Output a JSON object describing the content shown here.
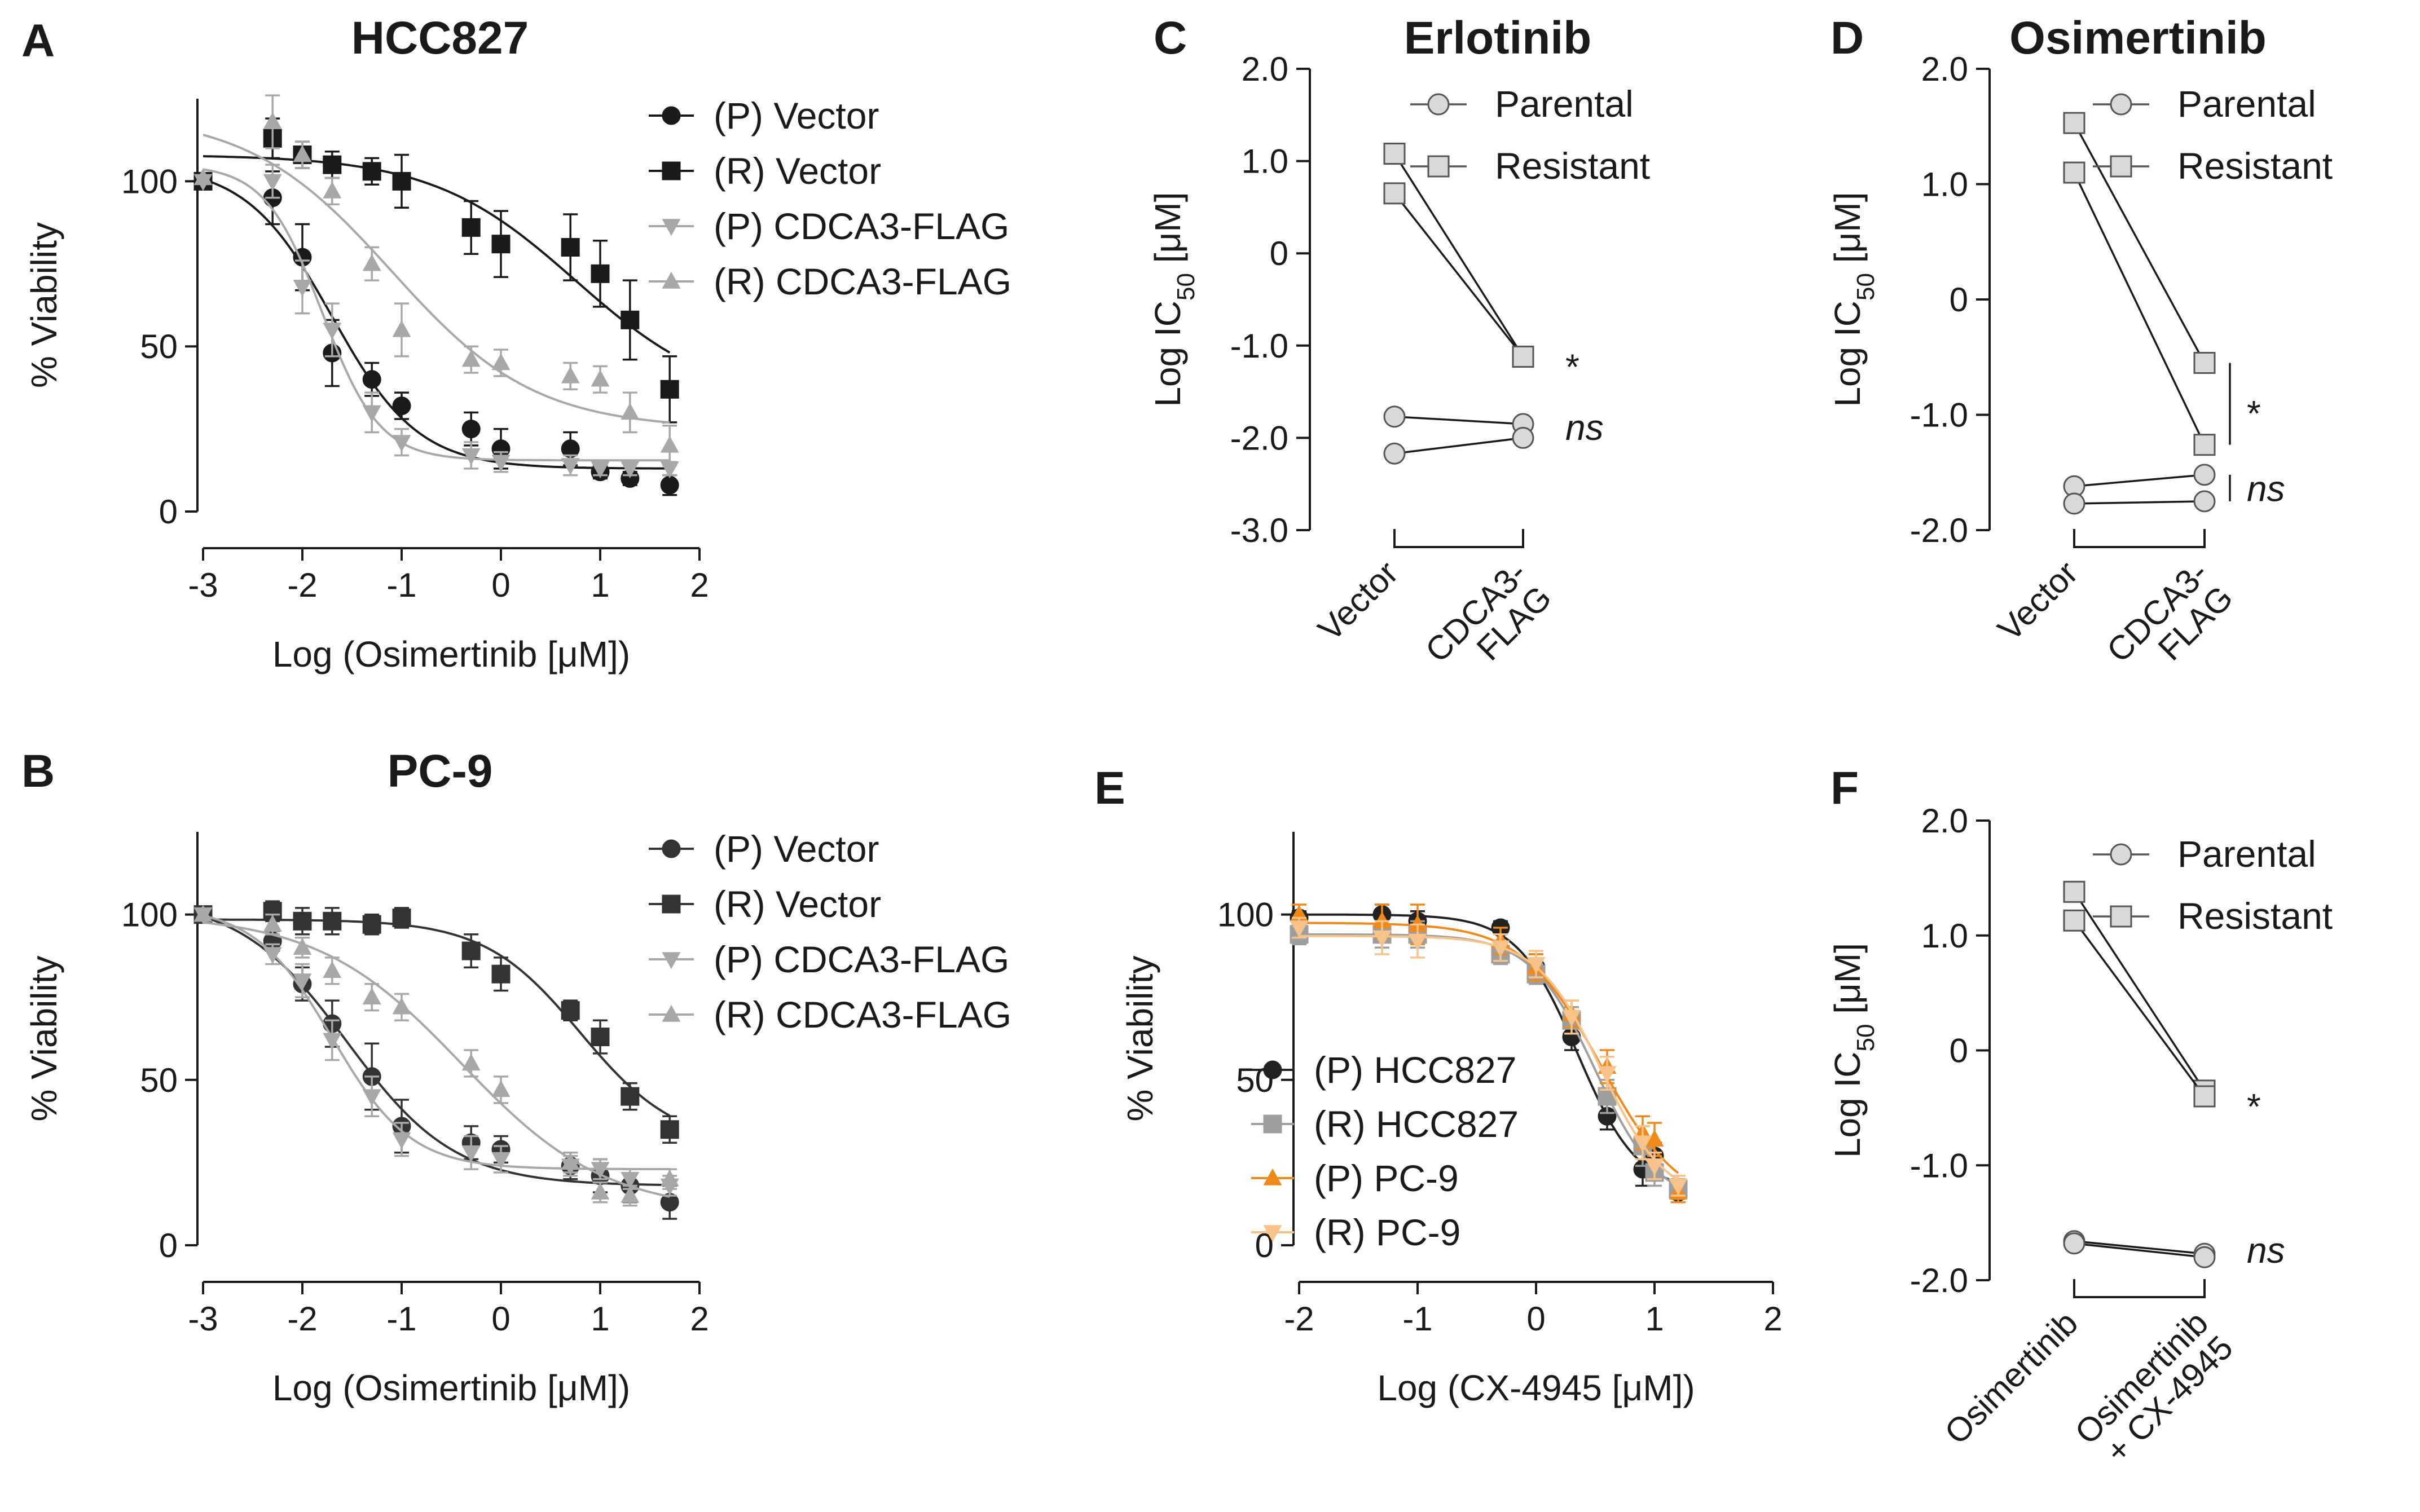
{
  "panel_labels": {
    "A": "A",
    "B": "B",
    "C": "C",
    "D": "D",
    "E": "E",
    "F": "F"
  },
  "chart_data": [
    {
      "id": "A",
      "type": "line",
      "title": "HCC827",
      "xlabel": "Log (Osimertinib [μM])",
      "ylabel": "% Viability",
      "xlim": [
        -3,
        2
      ],
      "ylim": [
        0,
        125
      ],
      "xticks": [
        -3,
        -2,
        -1,
        0,
        1,
        2
      ],
      "yticks": [
        0,
        50,
        100
      ],
      "series": [
        {
          "name": "(P) Vector",
          "marker": "circle",
          "color": "#1a1a1a",
          "x": [
            -3,
            -2.3,
            -2,
            -1.7,
            -1.3,
            -1,
            -0.3,
            0,
            0.7,
            1,
            1.3,
            1.7
          ],
          "y": [
            100,
            95,
            77,
            48,
            40,
            32,
            25,
            19,
            19,
            12,
            10,
            8
          ],
          "err": [
            0,
            8,
            10,
            10,
            5,
            4,
            5,
            6,
            5,
            2,
            2,
            3
          ]
        },
        {
          "name": "(R) Vector",
          "marker": "square",
          "color": "#1a1a1a",
          "x": [
            -3,
            -2.3,
            -2,
            -1.7,
            -1.3,
            -1,
            -0.3,
            0,
            0.7,
            1,
            1.3,
            1.7
          ],
          "y": [
            100,
            113,
            108,
            105,
            103,
            100,
            86,
            81,
            80,
            72,
            58,
            37
          ],
          "err": [
            0,
            6,
            4,
            4,
            4,
            8,
            8,
            10,
            10,
            10,
            12,
            10
          ]
        },
        {
          "name": "(P) CDCA3-FLAG",
          "marker": "tri-down",
          "color": "#a8a8a8",
          "x": [
            -3,
            -2.3,
            -2,
            -1.7,
            -1.3,
            -1,
            -0.3,
            0,
            0.7,
            1,
            1.3,
            1.7
          ],
          "y": [
            100,
            100,
            68,
            55,
            30,
            21,
            17,
            15,
            14,
            13,
            13,
            13
          ],
          "err": [
            0,
            5,
            8,
            8,
            6,
            4,
            4,
            3,
            3,
            2,
            2,
            2
          ]
        },
        {
          "name": "(R) CDCA3-FLAG",
          "marker": "tri-up",
          "color": "#a8a8a8",
          "x": [
            -3,
            -2.3,
            -2,
            -1.7,
            -1.3,
            -1,
            -0.3,
            0,
            0.7,
            1,
            1.3,
            1.7
          ],
          "y": [
            101,
            118,
            108,
            97,
            75,
            55,
            46,
            45,
            41,
            40,
            30,
            20
          ],
          "err": [
            0,
            8,
            4,
            4,
            5,
            8,
            4,
            4,
            4,
            4,
            6,
            6
          ]
        }
      ]
    },
    {
      "id": "B",
      "type": "line",
      "title": "PC-9",
      "xlabel": "Log (Osimertinib [μM])",
      "ylabel": "% Viability",
      "xlim": [
        -3,
        2
      ],
      "ylim": [
        0,
        125
      ],
      "xticks": [
        -3,
        -2,
        -1,
        0,
        1,
        2
      ],
      "yticks": [
        0,
        50,
        100
      ],
      "series": [
        {
          "name": "(P) Vector",
          "marker": "circle",
          "color": "#333333",
          "x": [
            -3,
            -2.3,
            -2,
            -1.7,
            -1.3,
            -1,
            -0.3,
            0,
            0.7,
            1,
            1.3,
            1.7
          ],
          "y": [
            100,
            92,
            79,
            67,
            51,
            36,
            31,
            29,
            24,
            21,
            18,
            13
          ],
          "err": [
            0,
            3,
            5,
            7,
            10,
            8,
            5,
            4,
            4,
            5,
            5,
            5
          ]
        },
        {
          "name": "(R) Vector",
          "marker": "square",
          "color": "#333333",
          "x": [
            -3,
            -2.3,
            -2,
            -1.7,
            -1.3,
            -1,
            -0.3,
            0,
            0.7,
            1,
            1.3,
            1.7
          ],
          "y": [
            100,
            101,
            98,
            98,
            97,
            99,
            89,
            82,
            71,
            63,
            45,
            35
          ],
          "err": [
            0,
            3,
            4,
            4,
            3,
            3,
            5,
            5,
            3,
            5,
            4,
            4
          ]
        },
        {
          "name": "(P) CDCA3-FLAG",
          "marker": "tri-down",
          "color": "#a8a8a8",
          "x": [
            -3,
            -2.3,
            -2,
            -1.7,
            -1.3,
            -1,
            -0.3,
            0,
            0.7,
            1,
            1.3,
            1.7
          ],
          "y": [
            100,
            88,
            80,
            62,
            45,
            32,
            28,
            26,
            24,
            23,
            20,
            18
          ],
          "err": [
            0,
            3,
            5,
            6,
            6,
            5,
            5,
            4,
            3,
            3,
            3,
            3
          ]
        },
        {
          "name": "(R) CDCA3-FLAG",
          "marker": "tri-up",
          "color": "#a8a8a8",
          "x": [
            -3,
            -2.3,
            -2,
            -1.7,
            -1.3,
            -1,
            -0.3,
            0,
            0.7,
            1,
            1.3,
            1.7
          ],
          "y": [
            100,
            97,
            90,
            83,
            75,
            72,
            55,
            47,
            25,
            16,
            15,
            20
          ],
          "err": [
            0,
            3,
            3,
            4,
            4,
            4,
            4,
            4,
            3,
            3,
            3,
            3
          ]
        }
      ]
    },
    {
      "id": "C",
      "type": "scatter",
      "title": "Erlotinib",
      "xlabel": "",
      "ylabel_main": "Log IC",
      "ylabel_sub": "50",
      "ylabel_unit": " [μM]",
      "ylim": [
        -3.0,
        2.0
      ],
      "yticks": [
        -3.0,
        -2.0,
        -1.0,
        0,
        1.0,
        2.0
      ],
      "ytick_labels": [
        "-3.0",
        "-2.0",
        "-1.0",
        "0",
        "1.0",
        "2.0"
      ],
      "categories": [
        "Vector",
        "CDCA3-\nFLAG"
      ],
      "legend": [
        "Parental",
        "Resistant"
      ],
      "pairs": [
        {
          "group": "Resistant",
          "values": [
            1.08,
            -1.12
          ]
        },
        {
          "group": "Resistant",
          "values": [
            0.65,
            -1.12
          ]
        },
        {
          "group": "Parental",
          "values": [
            -1.77,
            -1.85
          ]
        },
        {
          "group": "Parental",
          "values": [
            -2.17,
            -2.0
          ]
        }
      ],
      "significance": [
        {
          "label": "*",
          "italic": false,
          "y": -1.12
        },
        {
          "label": "ns",
          "italic": true,
          "y": -1.9
        }
      ]
    },
    {
      "id": "D",
      "type": "scatter",
      "title": "Osimertinib",
      "xlabel": "",
      "ylabel_main": "Log IC",
      "ylabel_sub": "50",
      "ylabel_unit": " [μM]",
      "ylim": [
        -2.0,
        2.0
      ],
      "yticks": [
        -2.0,
        -1.0,
        0,
        1.0,
        2.0
      ],
      "ytick_labels": [
        "-2.0",
        "-1.0",
        "0",
        "1.0",
        "2.0"
      ],
      "categories": [
        "Vector",
        "CDCA3-\nFLAG"
      ],
      "legend": [
        "Parental",
        "Resistant"
      ],
      "pairs": [
        {
          "group": "Resistant",
          "values": [
            1.53,
            -0.55
          ]
        },
        {
          "group": "Resistant",
          "values": [
            1.1,
            -1.26
          ]
        },
        {
          "group": "Parental",
          "values": [
            -1.62,
            -1.52
          ]
        },
        {
          "group": "Parental",
          "values": [
            -1.77,
            -1.75
          ]
        }
      ],
      "significance": [
        {
          "label": "*",
          "italic": false,
          "y": -0.9
        },
        {
          "label": "ns",
          "italic": true,
          "y": -1.65
        }
      ]
    },
    {
      "id": "E",
      "type": "line",
      "title": "",
      "xlabel": "Log (CX-4945 [μM])",
      "ylabel": "% Viability",
      "xlim": [
        -2,
        2
      ],
      "ylim": [
        0,
        125
      ],
      "xticks": [
        -2,
        -1,
        0,
        1,
        2
      ],
      "yticks": [
        0,
        50,
        100
      ],
      "legend_position": "lower-left",
      "series": [
        {
          "name": "(P) HCC827",
          "marker": "circle",
          "color": "#222222",
          "x": [
            -2,
            -1.3,
            -1,
            -0.3,
            0,
            0.3,
            0.6,
            0.9,
            1,
            1.2
          ],
          "y": [
            99,
            100,
            98,
            96,
            84,
            63,
            39,
            23,
            27,
            16
          ],
          "err": [
            2,
            3,
            3,
            2,
            4,
            4,
            4,
            5,
            4,
            3
          ]
        },
        {
          "name": "(R) HCC827",
          "marker": "square",
          "color": "#9e9e9e",
          "x": [
            -2,
            -1.3,
            -1,
            -0.3,
            0,
            0.3,
            0.6,
            0.9,
            1,
            1.2
          ],
          "y": [
            94,
            94,
            94,
            88,
            82,
            68,
            45,
            30,
            22,
            17
          ],
          "err": [
            3,
            4,
            4,
            3,
            3,
            4,
            5,
            6,
            4,
            3
          ]
        },
        {
          "name": "(P) PC-9",
          "marker": "tri-up",
          "color": "#ef8a1a",
          "x": [
            -2,
            -1.3,
            -1,
            -0.3,
            0,
            0.3,
            0.6,
            0.9,
            1,
            1.2
          ],
          "y": [
            100,
            98,
            97,
            92,
            84,
            70,
            54,
            34,
            32,
            16
          ],
          "err": [
            3,
            5,
            6,
            4,
            4,
            4,
            5,
            5,
            5,
            3
          ]
        },
        {
          "name": "(R) PC-9",
          "marker": "tri-down",
          "color": "#f7c38a",
          "x": [
            -2,
            -1.3,
            -1,
            -0.3,
            0,
            0.3,
            0.6,
            0.9,
            1,
            1.2
          ],
          "y": [
            96,
            93,
            92,
            90,
            85,
            69,
            52,
            31,
            24,
            18
          ],
          "err": [
            3,
            5,
            5,
            4,
            4,
            5,
            5,
            5,
            4,
            3
          ]
        }
      ]
    },
    {
      "id": "F",
      "type": "scatter",
      "title": "",
      "xlabel": "",
      "ylabel_main": "Log IC",
      "ylabel_sub": "50",
      "ylabel_unit": " [μM]",
      "ylim": [
        -2.0,
        2.0
      ],
      "yticks": [
        -2.0,
        -1.0,
        0,
        1.0,
        2.0
      ],
      "ytick_labels": [
        "-2.0",
        "-1.0",
        "0",
        "1.0",
        "2.0"
      ],
      "categories": [
        "Osimertinib",
        "Osimertinib\n+ CX-4945"
      ],
      "legend": [
        "Parental",
        "Resistant"
      ],
      "pairs": [
        {
          "group": "Resistant",
          "values": [
            1.38,
            -0.35
          ]
        },
        {
          "group": "Resistant",
          "values": [
            1.13,
            -0.4
          ]
        },
        {
          "group": "Parental",
          "values": [
            -1.66,
            -1.77
          ]
        },
        {
          "group": "Parental",
          "values": [
            -1.68,
            -1.8
          ]
        }
      ],
      "significance": [
        {
          "label": "*",
          "italic": false,
          "y": -0.4
        },
        {
          "label": "ns",
          "italic": true,
          "y": -1.75
        }
      ]
    }
  ]
}
